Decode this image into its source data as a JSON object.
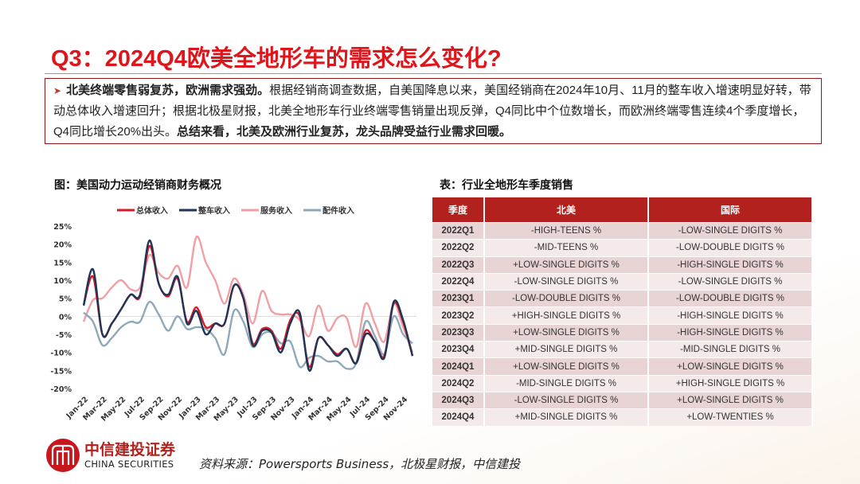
{
  "title": "Q3：2024Q4欧美全地形车的需求怎么变化?",
  "summary": {
    "bold1": "北美终端零售弱复苏，欧洲需求强劲。",
    "text1": "根据经销商调查数据，自美国降息以来，美国经销商在2024年10月、11月的整车收入增速明显好转，带动总体收入增速回升；根据北极星财报，北美全地形车行业终端零售销量出现反弹，Q4同比中个位数增长，而欧洲终端零售连续4个季度增长，Q4同比增长20%出头。",
    "bold2": "总结来看，北美及欧洲行业复苏，龙头品牌受益行业需求回暖。"
  },
  "chart_title": "图：美国动力运动经销商财务概况",
  "table_title": "表：行业全地形车季度销售",
  "chart_data": {
    "type": "line",
    "x": [
      "Jan-22",
      "Feb-22",
      "Mar-22",
      "Apr-22",
      "May-22",
      "Jun-22",
      "Jul-22",
      "Aug-22",
      "Sep-22",
      "Oct-22",
      "Nov-22",
      "Dec-22",
      "Jan-23",
      "Feb-23",
      "Mar-23",
      "Apr-23",
      "May-23",
      "Jun-23",
      "Jul-23",
      "Aug-23",
      "Sep-23",
      "Oct-23",
      "Nov-23",
      "Dec-23",
      "Jan-24",
      "Feb-24",
      "Mar-24",
      "Apr-24",
      "May-24",
      "Jun-24",
      "Jul-24",
      "Aug-24",
      "Sep-24",
      "Oct-24",
      "Nov-24",
      "Dec-24"
    ],
    "xtick_labels": [
      "Jan-22",
      "Mar-22",
      "May-22",
      "Jul-22",
      "Sep-22",
      "Nov-22",
      "Jan-23",
      "Mar-23",
      "May-23",
      "Jul-23",
      "Sep-23",
      "Nov-23",
      "Jan-24",
      "Mar-24",
      "May-24",
      "Jul-24",
      "Sep-24",
      "Nov-24"
    ],
    "ytick_labels": [
      "25%",
      "20%",
      "15%",
      "10%",
      "5%",
      "0%",
      "-5%",
      "-10%",
      "-15%",
      "-20%"
    ],
    "ylim": [
      -20,
      25
    ],
    "unit": "%",
    "legend_position": "top",
    "grid": false,
    "series": [
      {
        "name": "总体收入",
        "color": "#d7192a",
        "values": [
          3,
          11,
          -5,
          -2,
          2,
          6,
          5.5,
          19.5,
          9,
          5.5,
          10.5,
          -1.5,
          2.5,
          -3,
          -2,
          -2,
          8.5,
          5,
          -7.5,
          -3.5,
          -4,
          -9,
          -1,
          0,
          -14,
          -6,
          -8,
          -10.5,
          -9,
          -13,
          -4,
          -7,
          -11,
          3.5,
          -1.5,
          -11
        ]
      },
      {
        "name": "整车收入",
        "color": "#1d3557",
        "values": [
          3,
          13,
          -5,
          -2,
          2,
          6,
          6,
          21,
          9,
          6,
          11,
          -2,
          1.5,
          -5,
          -2,
          -2,
          8.5,
          5,
          -8,
          -4,
          -4.5,
          -10,
          -2,
          1,
          -15,
          -6,
          -8,
          -11,
          -9,
          -13,
          -5,
          -7,
          -11.5,
          4,
          -1,
          -11
        ]
      },
      {
        "name": "服务收入",
        "color": "#f0a0a4",
        "values": [
          -1.5,
          4.5,
          5,
          8,
          10,
          7.5,
          8,
          17,
          12,
          10.5,
          14,
          8,
          22,
          15,
          10,
          3.5,
          10.5,
          6,
          -2,
          7,
          1.5,
          0.5,
          0.5,
          -1,
          -5.5,
          3,
          -4,
          -0.5,
          -0.5,
          -8.5,
          3.5,
          -2,
          -7,
          3.5,
          -3,
          -10
        ]
      },
      {
        "name": "配件收入",
        "color": "#8fa9b9",
        "values": [
          1,
          -1.5,
          -8,
          -6,
          -3,
          -1.5,
          -1.5,
          4,
          0.5,
          -4,
          0,
          -3.5,
          -3,
          -3.5,
          -6,
          -10.5,
          1.5,
          -1.5,
          -8.5,
          -5,
          -4.5,
          -7.5,
          -7,
          -14,
          -11.5,
          -11,
          -12.5,
          -12.5,
          -14.5,
          -13,
          -1.5,
          -5.5,
          -10.5,
          0,
          -5,
          -7.5
        ]
      }
    ]
  },
  "table": {
    "headers": [
      "季度",
      "北美",
      "国际"
    ],
    "rows": [
      [
        "2022Q1",
        "-HIGH-TEENS %",
        "-LOW-SINGLE DIGITS %"
      ],
      [
        "2022Q2",
        "-MID-TEENS %",
        "-LOW-DOUBLE DIGITS %"
      ],
      [
        "2022Q3",
        "+LOW-SINGLE DIGITS %",
        "-HIGH-SINGLE DIGITS %"
      ],
      [
        "2022Q4",
        "-LOW-SINGLE DIGITS %",
        "-LOW-SINGLE DIGITS %"
      ],
      [
        "2023Q1",
        "-LOW-DOUBLE DIGITS %",
        "-LOW-DOUBLE DIGITS %"
      ],
      [
        "2023Q2",
        "+HIGH-SINGLE DIGITS %",
        "-HIGH-SINGLE DIGITS %"
      ],
      [
        "2023Q3",
        "+LOW-SINGLE DIGITS %",
        "-HIGH-SINGLE DIGITS %"
      ],
      [
        "2023Q4",
        "+MID-SINGLE DIGITS %",
        "-MID-SINGLE DIGITS %"
      ],
      [
        "2024Q1",
        "+LOW-SINGLE DIGITS %",
        "+LOW-SINGLE DIGITS %"
      ],
      [
        "2024Q2",
        "-MID-SINGLE DIGITS %",
        "+HIGH-SINGLE DIGITS %"
      ],
      [
        "2024Q3",
        "-LOW-SINGLE DIGITS %",
        "+LOW-SINGLE DIGITS %"
      ],
      [
        "2024Q4",
        "+MID-SINGLE DIGITS %",
        "+LOW-TWENTIES %"
      ]
    ]
  },
  "footer": {
    "logo_name": "中信建投证券",
    "logo_en": "CHINA SECURITIES",
    "source": "资料来源：Powersports Business，北极星财报，中信建投"
  },
  "colors": {
    "accent": "#e0141b",
    "table_header": "#b3211e",
    "border": "#8b1a1a"
  }
}
